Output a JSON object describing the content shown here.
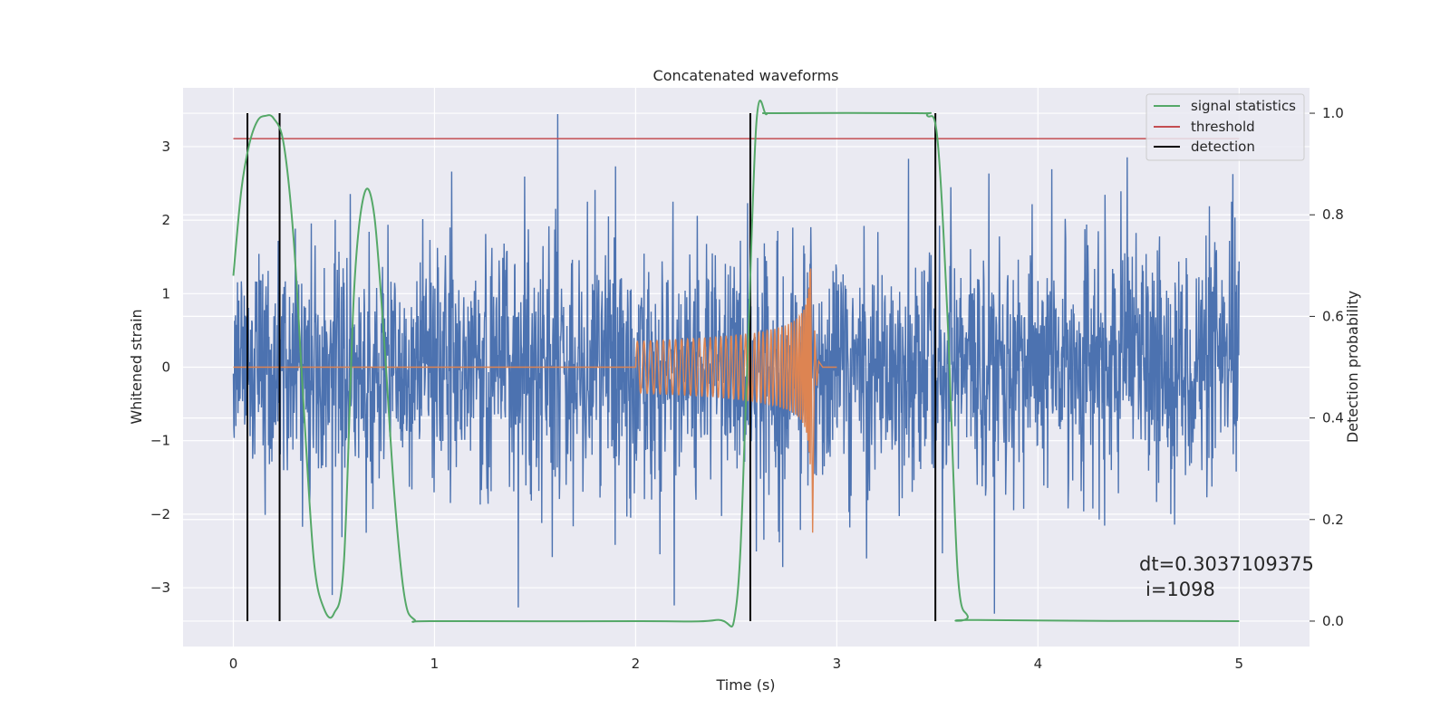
{
  "chart_data": {
    "type": "line",
    "title": "Concatenated waveforms",
    "xlabel": "Time (s)",
    "ylabel": "Whitened strain",
    "ylabel_right": "Detection probability",
    "xlim": [
      -0.25,
      5.35
    ],
    "ylim": [
      -3.8,
      3.8
    ],
    "ylim_right": [
      -0.05,
      1.05
    ],
    "x_ticks": [
      0,
      1,
      2,
      3,
      4,
      5
    ],
    "y_ticks": [
      -3,
      -2,
      -1,
      0,
      1,
      2,
      3
    ],
    "y_ticks_right": [
      0.0,
      0.2,
      0.4,
      0.6,
      0.8,
      1.0
    ],
    "grid": true,
    "legend_placement": "top-right",
    "legend": [
      {
        "name": "signal statistics",
        "color": "#55a868"
      },
      {
        "name": "threshold",
        "color": "#c44e52"
      },
      {
        "name": "detection",
        "color": "#000000"
      }
    ],
    "noise": {
      "color": "#4c72b0",
      "x_range": [
        0,
        5
      ],
      "typical_amplitude": 1.3,
      "peak_amplitude": 3.6
    },
    "chirp": {
      "color": "#dd8452",
      "x_range": [
        0,
        3
      ],
      "active_range": [
        2.0,
        2.9
      ],
      "start_amplitude": 0.35,
      "peak_time": 2.87,
      "peak_amplitude": 1.55,
      "peak_min": -2.25
    },
    "threshold": {
      "x_range": [
        0,
        5
      ],
      "value": 0.95
    },
    "detections": [
      0.07,
      0.23,
      2.57,
      3.49
    ],
    "signal_statistics": {
      "x": [
        0,
        0.04,
        0.08,
        0.12,
        0.16,
        0.2,
        0.25,
        0.3,
        0.35,
        0.4,
        0.45,
        0.5,
        0.55,
        0.6,
        0.65,
        0.7,
        0.75,
        0.8,
        0.85,
        0.9,
        1.0,
        2.0,
        2.4,
        2.5,
        2.55,
        2.6,
        2.65,
        2.7,
        3.4,
        3.45,
        3.5,
        3.55,
        3.6,
        3.65,
        3.7,
        5.0
      ],
      "values": [
        0.68,
        0.85,
        0.94,
        0.985,
        0.995,
        0.99,
        0.94,
        0.75,
        0.42,
        0.12,
        0.025,
        0.015,
        0.12,
        0.65,
        0.84,
        0.8,
        0.55,
        0.25,
        0.05,
        0.003,
        0.0,
        0.0,
        0.002,
        0.03,
        0.45,
        0.98,
        0.998,
        1.0,
        1.0,
        0.995,
        0.95,
        0.6,
        0.1,
        0.01,
        0.002,
        0.0
      ]
    },
    "annotations": [
      "dt=0.3037109375",
      "i=1098"
    ]
  }
}
